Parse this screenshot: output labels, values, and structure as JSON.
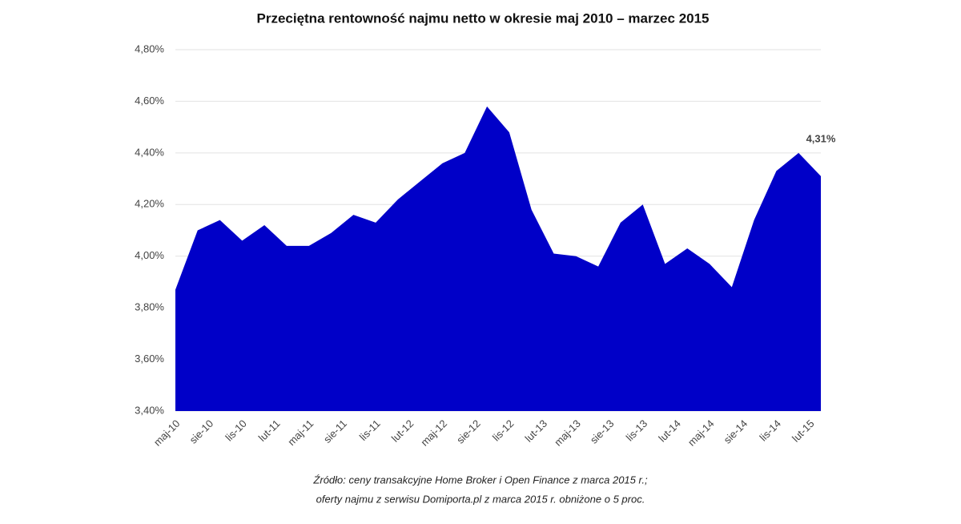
{
  "chart_data": {
    "type": "area",
    "title": "Przeciętna rentowność najmu netto w okresie maj 2010 – marzec 2015",
    "notes": [
      "Źródło: ceny transakcyjne Home Broker i Open Finance z marca 2015 r.;",
      "oferty najmu z serwisu Domiporta.pl z marca 2015 r. obniżone o 5 proc."
    ],
    "x": [
      "2010-05",
      "2010-07",
      "2010-09",
      "2010-11",
      "2011-01",
      "2011-03",
      "2011-05",
      "2011-07",
      "2011-09",
      "2011-11",
      "2012-01",
      "2012-03",
      "2012-05",
      "2012-07",
      "2012-09",
      "2012-11",
      "2013-01",
      "2013-03",
      "2013-05",
      "2013-07",
      "2013-09",
      "2013-11",
      "2014-01",
      "2014-03",
      "2014-05",
      "2014-07",
      "2014-09",
      "2014-11",
      "2015-01",
      "2015-03"
    ],
    "series": [
      {
        "name": "Rentowność",
        "color": "#0000c8",
        "values": [
          3.87,
          4.1,
          4.14,
          4.06,
          4.12,
          4.04,
          4.04,
          4.09,
          4.16,
          4.13,
          4.22,
          4.29,
          4.36,
          4.4,
          4.58,
          4.48,
          4.18,
          4.01,
          4.0,
          3.96,
          4.13,
          4.2,
          3.97,
          4.03,
          3.97,
          3.88,
          4.14,
          4.33,
          4.4,
          4.31
        ],
        "value_labels": [
          null,
          null,
          null,
          null,
          null,
          null,
          null,
          null,
          null,
          null,
          null,
          null,
          null,
          null,
          null,
          null,
          null,
          null,
          null,
          null,
          null,
          null,
          null,
          null,
          null,
          null,
          null,
          null,
          null,
          "4,31%"
        ]
      }
    ],
    "xlim": [
      "2010-05",
      "2015-03"
    ],
    "xticks": [
      {
        "value": "2010-05",
        "label": "maj-10"
      },
      {
        "value": "2010-08",
        "label": "sie-10"
      },
      {
        "value": "2010-11",
        "label": "lis-10"
      },
      {
        "value": "2011-02",
        "label": "lut-11"
      },
      {
        "value": "2011-05",
        "label": "maj-11"
      },
      {
        "value": "2011-08",
        "label": "sie-11"
      },
      {
        "value": "2011-11",
        "label": "lis-11"
      },
      {
        "value": "2012-02",
        "label": "lut-12"
      },
      {
        "value": "2012-05",
        "label": "maj-12"
      },
      {
        "value": "2012-08",
        "label": "sie-12"
      },
      {
        "value": "2012-11",
        "label": "lis-12"
      },
      {
        "value": "2013-02",
        "label": "lut-13"
      },
      {
        "value": "2013-05",
        "label": "maj-13"
      },
      {
        "value": "2013-08",
        "label": "sie-13"
      },
      {
        "value": "2013-11",
        "label": "lis-13"
      },
      {
        "value": "2014-02",
        "label": "lut-14"
      },
      {
        "value": "2014-05",
        "label": "maj-14"
      },
      {
        "value": "2014-08",
        "label": "sie-14"
      },
      {
        "value": "2014-11",
        "label": "lis-14"
      },
      {
        "value": "2015-02",
        "label": "lut-15"
      }
    ],
    "ylim": [
      3.4,
      4.8
    ],
    "yticks": [
      {
        "value": 3.4,
        "label": "3,40%"
      },
      {
        "value": 3.6,
        "label": "3,60%"
      },
      {
        "value": 3.8,
        "label": "3,80%"
      },
      {
        "value": 4.0,
        "label": "4,00%"
      },
      {
        "value": 4.2,
        "label": "4,20%"
      },
      {
        "value": 4.4,
        "label": "4,40%"
      },
      {
        "value": 4.6,
        "label": "4,60%"
      },
      {
        "value": 4.8,
        "label": "4,80%"
      }
    ],
    "grid": true
  }
}
